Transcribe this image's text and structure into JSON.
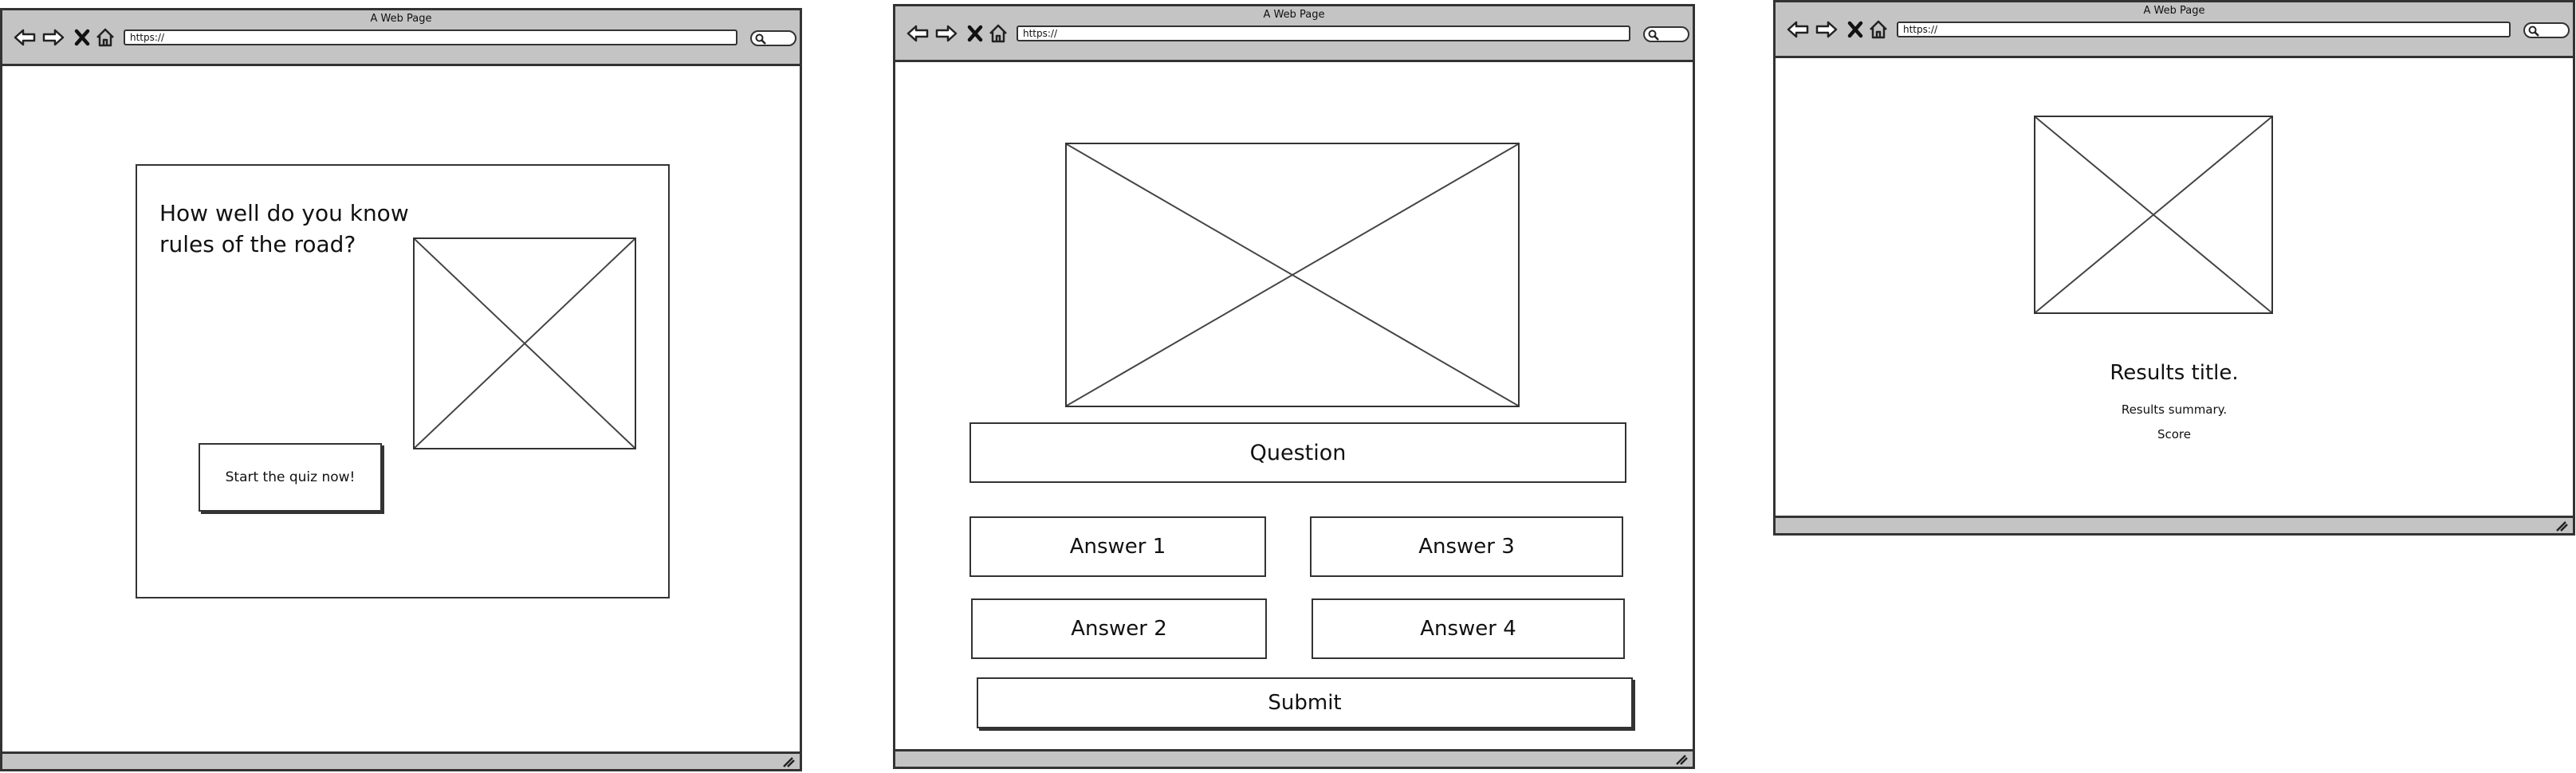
{
  "browser": {
    "window_title": "A Web Page",
    "url": "https://"
  },
  "screen1": {
    "heading": "How well do you know rules of the road?",
    "start_button": "Start the quiz now!"
  },
  "screen2": {
    "question": "Question",
    "answers": [
      "Answer 1",
      "Answer 2",
      "Answer 3",
      "Answer 4"
    ],
    "submit": "Submit"
  },
  "screen3": {
    "results_title": "Results title.",
    "results_summary": "Results summary.",
    "score": "Score"
  },
  "icons": [
    "back-arrow-icon",
    "forward-arrow-icon",
    "stop-icon",
    "home-icon",
    "search-icon",
    "resize-grip-icon",
    "image-placeholder"
  ]
}
